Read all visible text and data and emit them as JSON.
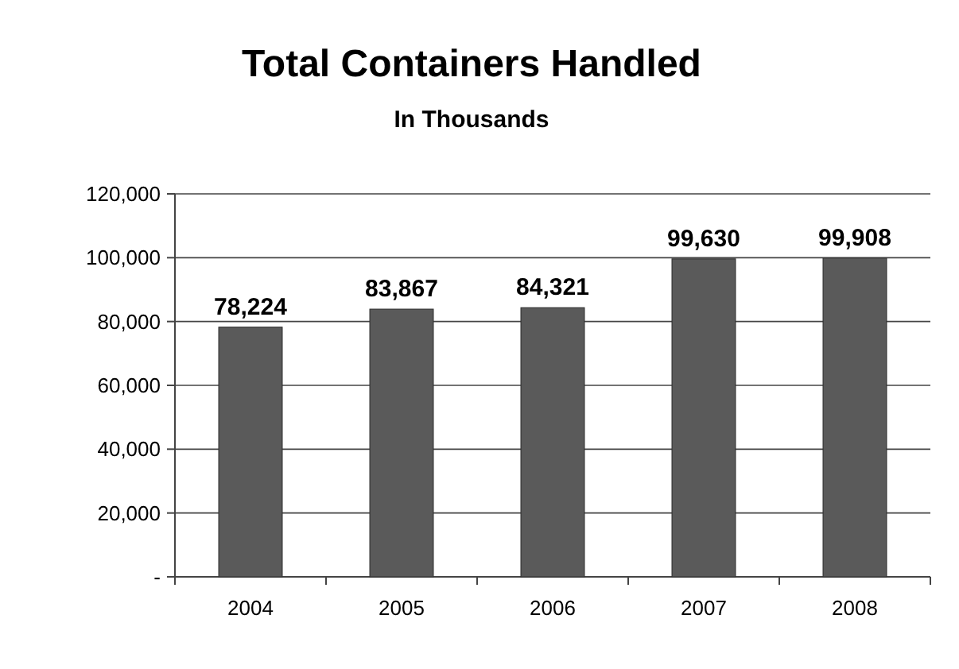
{
  "chart_data": {
    "type": "bar",
    "title": "Total Containers Handled",
    "subtitle": "In Thousands",
    "categories": [
      "2004",
      "2005",
      "2006",
      "2007",
      "2008"
    ],
    "values": [
      78224,
      83867,
      84321,
      99630,
      99908
    ],
    "color": "#5a5a5a",
    "value_labels": [
      "78,224",
      "83,867",
      "84,321",
      "99,630",
      "99,908"
    ],
    "ylim": [
      0,
      120000
    ],
    "yticks": [
      {
        "value": 0,
        "label": "-"
      },
      {
        "value": 20000,
        "label": "20,000"
      },
      {
        "value": 40000,
        "label": "40,000"
      },
      {
        "value": 60000,
        "label": "60,000"
      },
      {
        "value": 80000,
        "label": "80,000"
      },
      {
        "value": 100000,
        "label": "100,000"
      },
      {
        "value": 120000,
        "label": "120,000"
      }
    ],
    "grid": "y"
  }
}
